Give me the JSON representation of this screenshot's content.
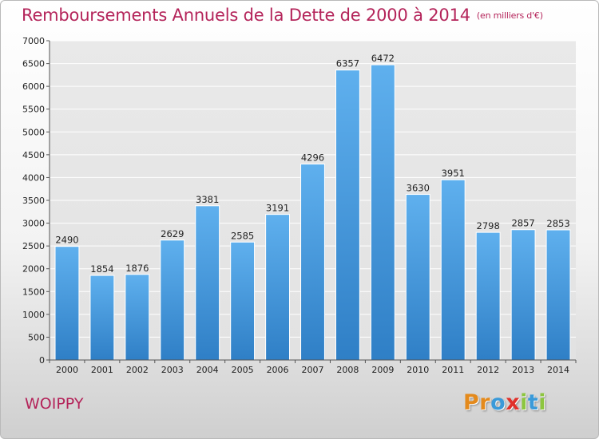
{
  "title": "Remboursements Annuels de la Dette de 2000 à 2014",
  "unit": "(en milliers d'€)",
  "footer_label": "WOIPPY",
  "logo": {
    "letters": [
      {
        "ch": "P",
        "color": "#e48a1c"
      },
      {
        "ch": "r",
        "color": "#e48a1c"
      },
      {
        "ch": "o",
        "color": "#3a9ad9"
      },
      {
        "ch": "x",
        "color": "#e0312b"
      },
      {
        "ch": "i",
        "color": "#8dc63f"
      },
      {
        "ch": "t",
        "color": "#3a9ad9"
      },
      {
        "ch": "i",
        "color": "#8dc63f"
      }
    ]
  },
  "chart_data": {
    "type": "bar",
    "categories": [
      "2000",
      "2001",
      "2002",
      "2003",
      "2004",
      "2005",
      "2006",
      "2007",
      "2008",
      "2009",
      "2010",
      "2011",
      "2012",
      "2013",
      "2014"
    ],
    "values": [
      2490,
      1854,
      1876,
      2629,
      3381,
      2585,
      3191,
      4296,
      6357,
      6472,
      3630,
      3951,
      2798,
      2857,
      2853
    ],
    "ylim": [
      0,
      7000
    ],
    "yticks": [
      0,
      500,
      1000,
      1500,
      2000,
      2500,
      3000,
      3500,
      4000,
      4500,
      5000,
      5500,
      6000,
      6500,
      7000
    ],
    "grid": true,
    "bar_color": "#4a9de0",
    "data_labels": true
  }
}
